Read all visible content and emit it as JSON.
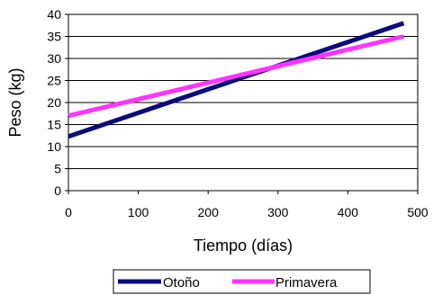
{
  "chart_data": {
    "type": "line",
    "title": "",
    "xlabel": "Tiempo (días)",
    "ylabel": "Peso (kg)",
    "xlim": [
      0,
      500
    ],
    "ylim": [
      0,
      40
    ],
    "xticks": [
      0,
      100,
      200,
      300,
      400,
      500
    ],
    "yticks": [
      0,
      5,
      10,
      15,
      20,
      25,
      30,
      35,
      40
    ],
    "grid": "horizontal",
    "legend_position": "bottom",
    "series": [
      {
        "name": "Otoño",
        "color": "#0a0a7a",
        "x": [
          0,
          480
        ],
        "y": [
          12.3,
          38.0
        ]
      },
      {
        "name": "Primavera",
        "color": "#ff33ff",
        "x": [
          0,
          480
        ],
        "y": [
          17.0,
          35.0
        ]
      }
    ]
  }
}
